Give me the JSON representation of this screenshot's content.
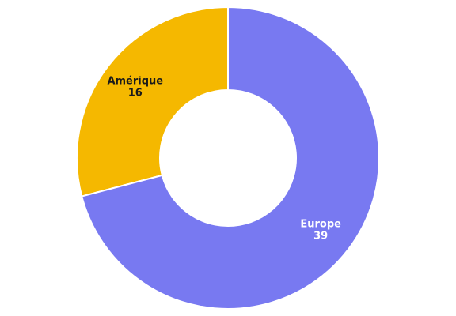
{
  "chart_data": {
    "type": "pie",
    "donut": true,
    "slices": [
      {
        "label": "Amérique",
        "value": 16,
        "color": "#f5b800",
        "label_color": "#1a1a1a"
      },
      {
        "label": "Europe",
        "value": 39,
        "color": "#7879f1",
        "label_color": "#ffffff"
      }
    ],
    "legend": "none",
    "data_labels": true
  }
}
